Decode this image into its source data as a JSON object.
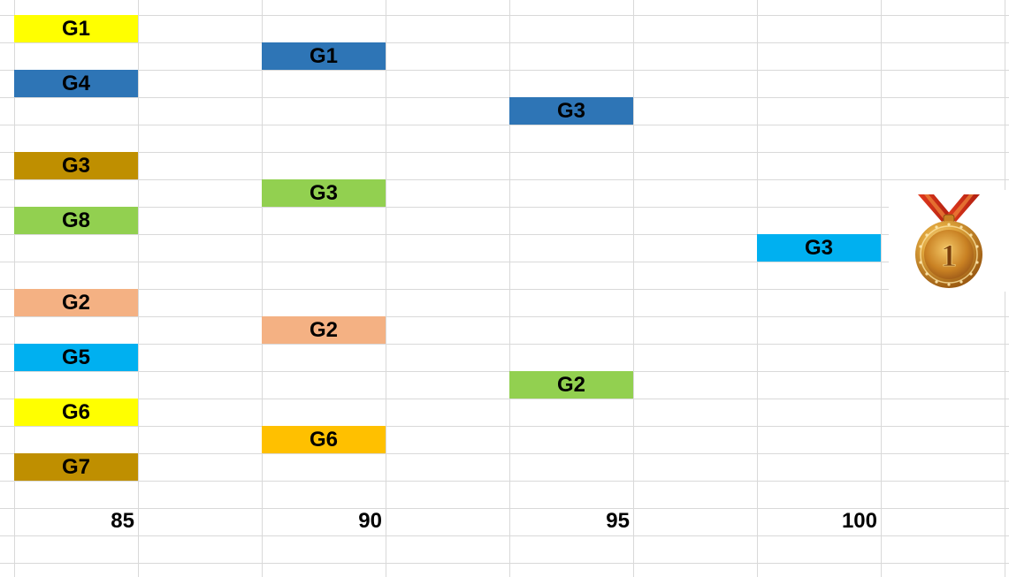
{
  "colors": {
    "yellow": "#ffff00",
    "dark_blue": "#2e75b6",
    "olive_gold": "#bf8f00",
    "light_green": "#92d050",
    "peach": "#f4b183",
    "sky_blue": "#00b0f0",
    "amber": "#ffc000",
    "gridline": "#d9d9d9"
  },
  "columns": [
    {
      "label": "85",
      "cells": [
        {
          "text": "G1",
          "color": "#ffff00"
        },
        {
          "text": "G4",
          "color": "#2e75b6"
        },
        {
          "text": "G3",
          "color": "#bf8f00"
        },
        {
          "text": "G8",
          "color": "#92d050"
        },
        {
          "text": "G2",
          "color": "#f4b183"
        },
        {
          "text": "G5",
          "color": "#00b0f0"
        },
        {
          "text": "G6",
          "color": "#ffff00"
        },
        {
          "text": "G7",
          "color": "#bf8f00"
        }
      ]
    },
    {
      "label": "90",
      "cells": [
        {
          "text": "G1",
          "color": "#2e75b6"
        },
        {
          "text": "G3",
          "color": "#92d050"
        },
        {
          "text": "G2",
          "color": "#f4b183"
        },
        {
          "text": "G6",
          "color": "#ffc000"
        }
      ]
    },
    {
      "label": "95",
      "cells": [
        {
          "text": "G3",
          "color": "#2e75b6"
        },
        {
          "text": "G2",
          "color": "#92d050"
        }
      ]
    },
    {
      "label": "100",
      "cells": [
        {
          "text": "G3",
          "color": "#00b0f0"
        }
      ]
    }
  ],
  "medal": {
    "icon": "gold-medal-icon",
    "number": "1"
  }
}
